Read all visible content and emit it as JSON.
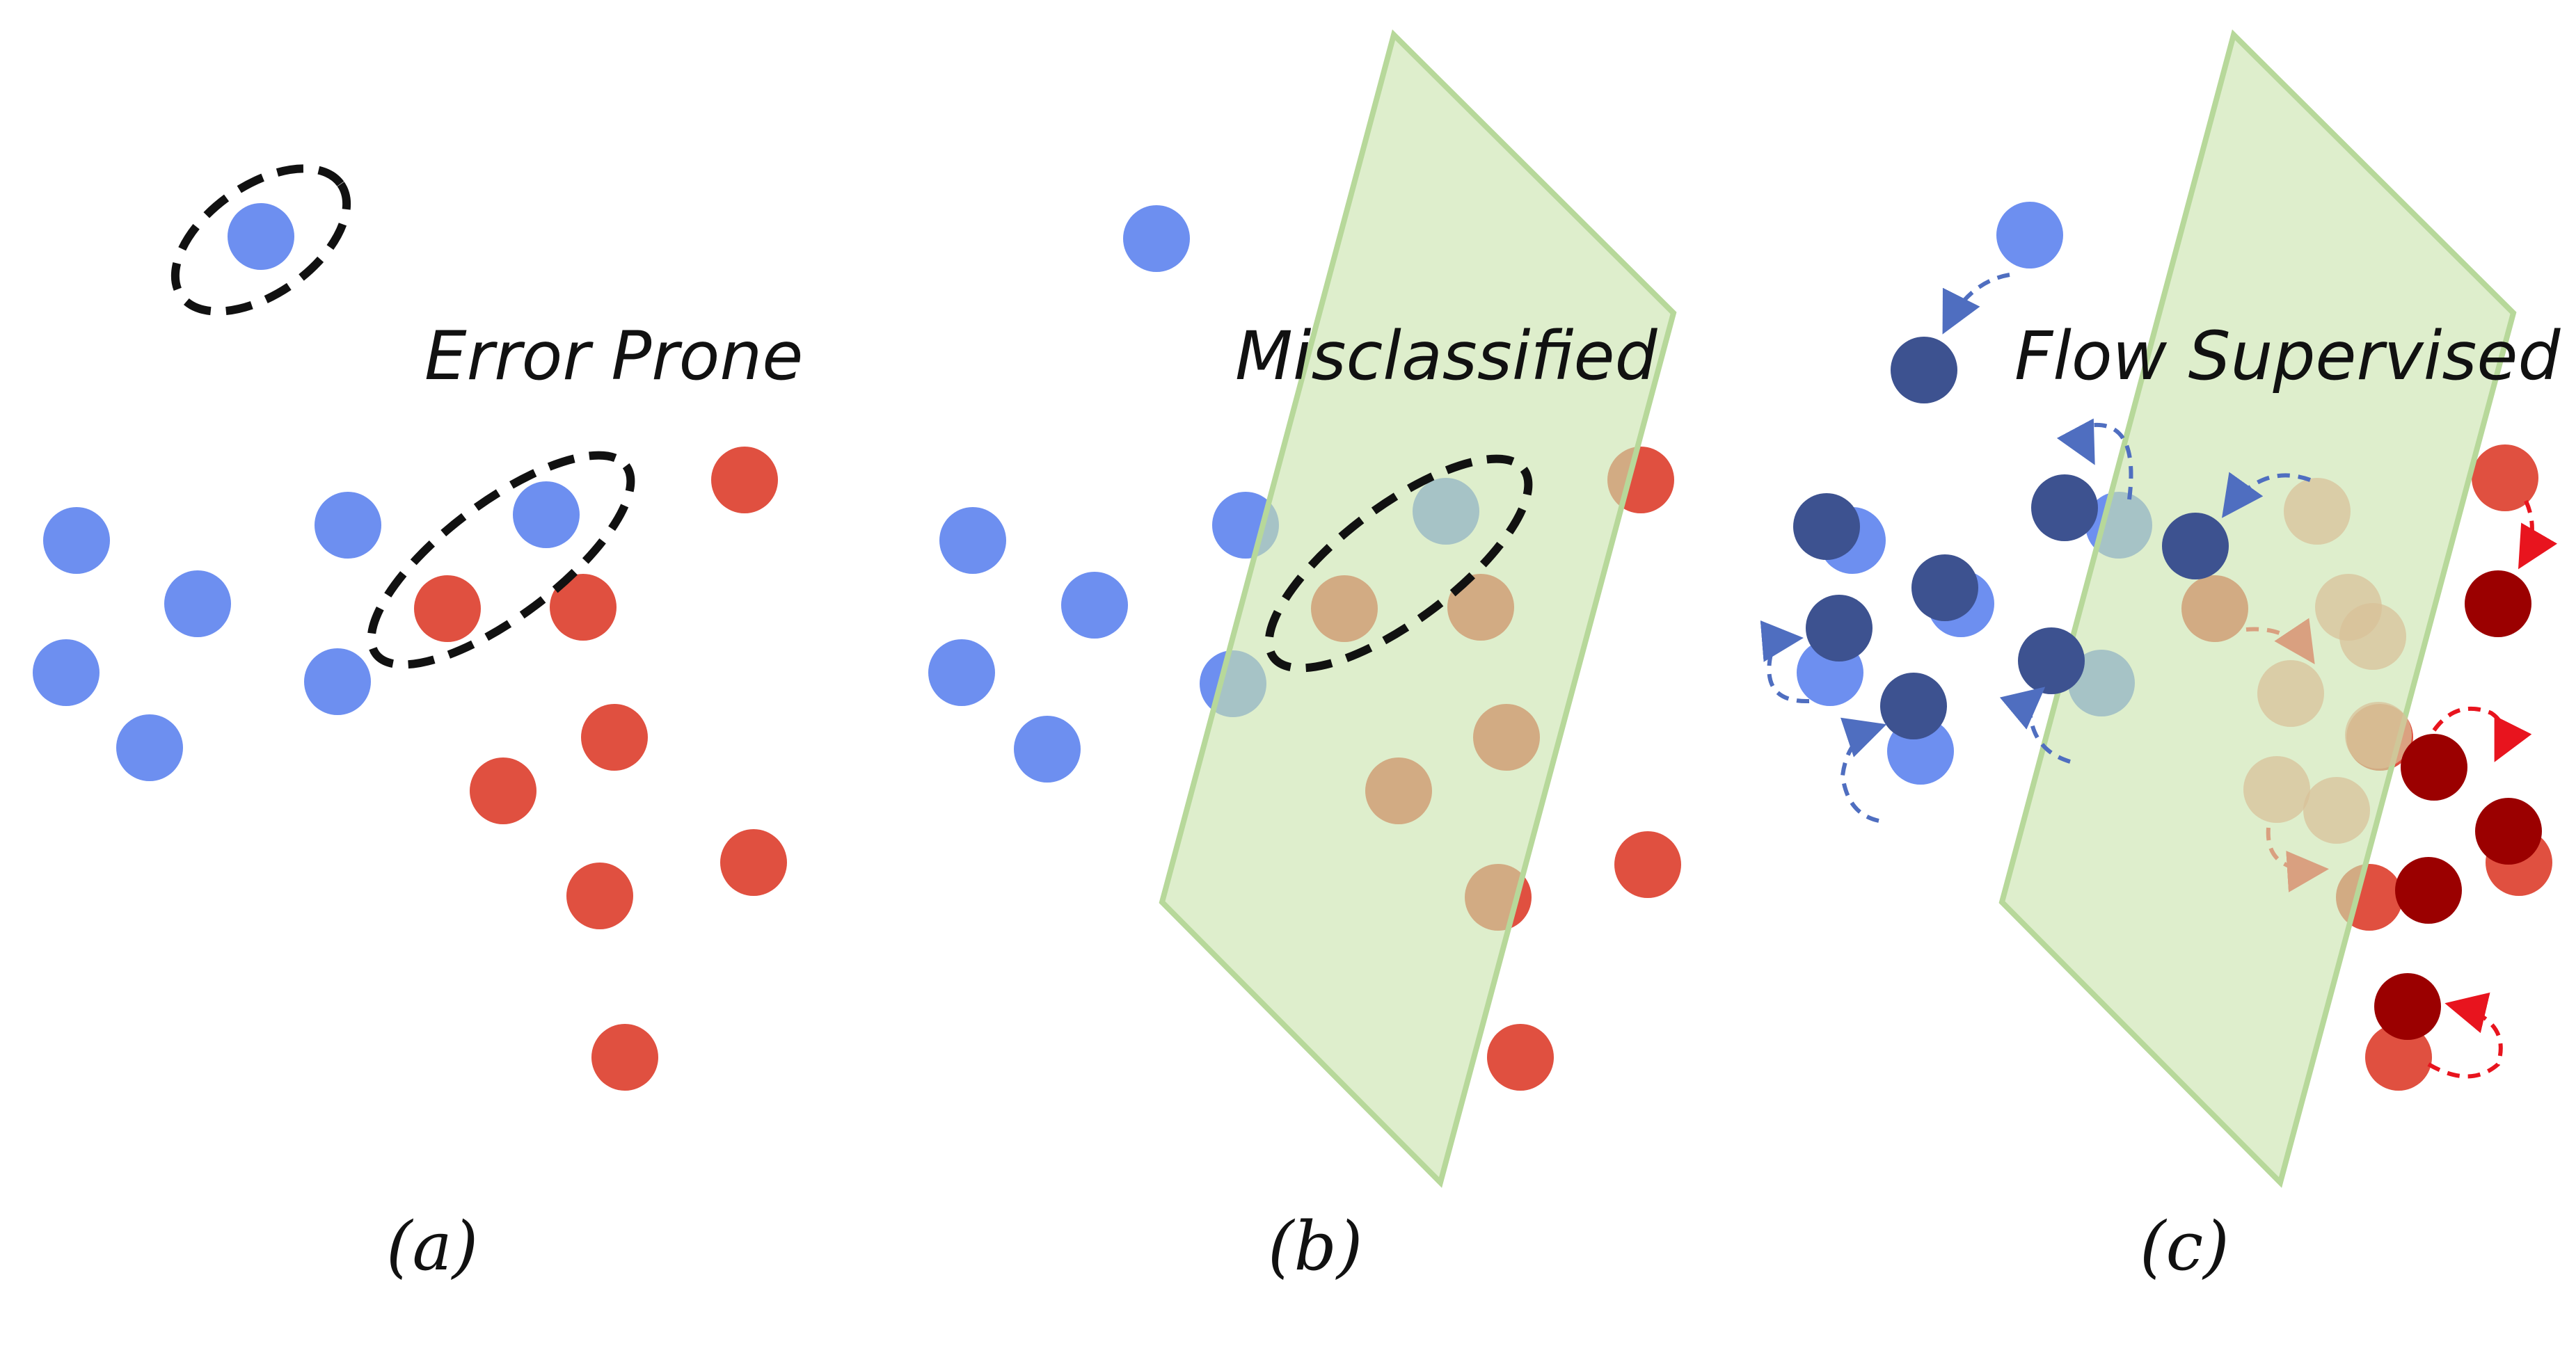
{
  "panels": [
    {
      "id": "a",
      "title": "Error Prone",
      "label": "(a)"
    },
    {
      "id": "b",
      "title": "Misclassified",
      "label": "(b)"
    },
    {
      "id": "c",
      "title": "Flow Supervised",
      "label": "(c)"
    }
  ],
  "colors": {
    "blue_point": "#6d8ff0",
    "red_point": "#e05040",
    "dark_blue_point": "#3d5290",
    "dark_red_point": "#9b0000",
    "faded_point": "#d8c098",
    "hyperplane": "#c9e4ad",
    "hyperplane_edge": "#b7d89a",
    "dashed_outline": "#111111",
    "blue_arrow": "#4f6ec0",
    "red_arrow": "#e8141e",
    "tan_arrow": "#d9a080"
  },
  "icons": [
    "dashed-ellipse-icon",
    "curved-dashed-arrow-icon"
  ]
}
